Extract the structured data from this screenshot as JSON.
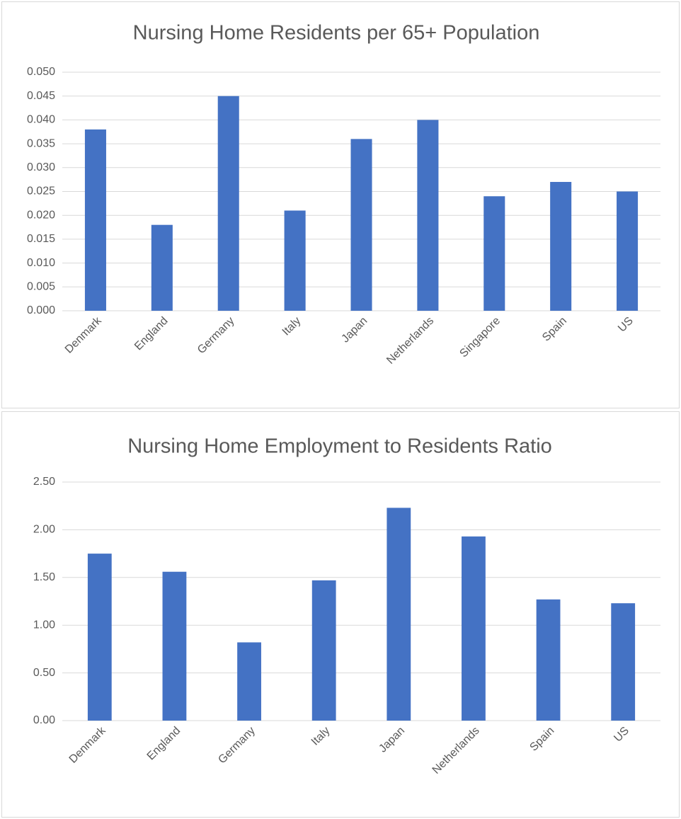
{
  "chart_data": [
    {
      "type": "bar",
      "title": "Nursing Home Residents per 65+ Population",
      "categories": [
        "Denmark",
        "England",
        "Germany",
        "Italy",
        "Japan",
        "Netherlands",
        "Singapore",
        "Spain",
        "US"
      ],
      "values": [
        0.038,
        0.018,
        0.045,
        0.021,
        0.036,
        0.04,
        0.024,
        0.027,
        0.025
      ],
      "color": "#4472c4",
      "ylim": [
        0,
        0.05
      ],
      "yticks": [
        {
          "value": 0,
          "label": "0.000"
        },
        0.005,
        {
          "value": 0.01,
          "label": "0.010"
        },
        0.015,
        {
          "value": 0.02,
          "label": "0.020"
        },
        0.025,
        {
          "value": 0.03,
          "label": "0.030"
        },
        0.035,
        {
          "value": 0.04,
          "label": "0.040"
        },
        0.045,
        {
          "value": 0.05,
          "label": "0.050"
        }
      ],
      "grid": true
    },
    {
      "type": "bar",
      "title": "Nursing Home Employment to Residents Ratio",
      "categories": [
        "Denmark",
        "England",
        "Germany",
        "Italy",
        "Japan",
        "Netherlands",
        "Spain",
        "US"
      ],
      "values": [
        1.75,
        1.56,
        0.82,
        1.47,
        2.23,
        1.93,
        1.27,
        1.23
      ],
      "color": "#4472c4",
      "ylim": [
        0,
        2.5
      ],
      "yticks": [
        {
          "value": 0,
          "label": "0.00"
        },
        {
          "value": 0.5,
          "label": "0.50"
        },
        {
          "value": 1,
          "label": "1.00"
        },
        {
          "value": 1.5,
          "label": "1.50"
        },
        {
          "value": 2,
          "label": "2.00"
        },
        {
          "value": 2.5,
          "label": "2.50"
        }
      ],
      "grid": true
    }
  ]
}
